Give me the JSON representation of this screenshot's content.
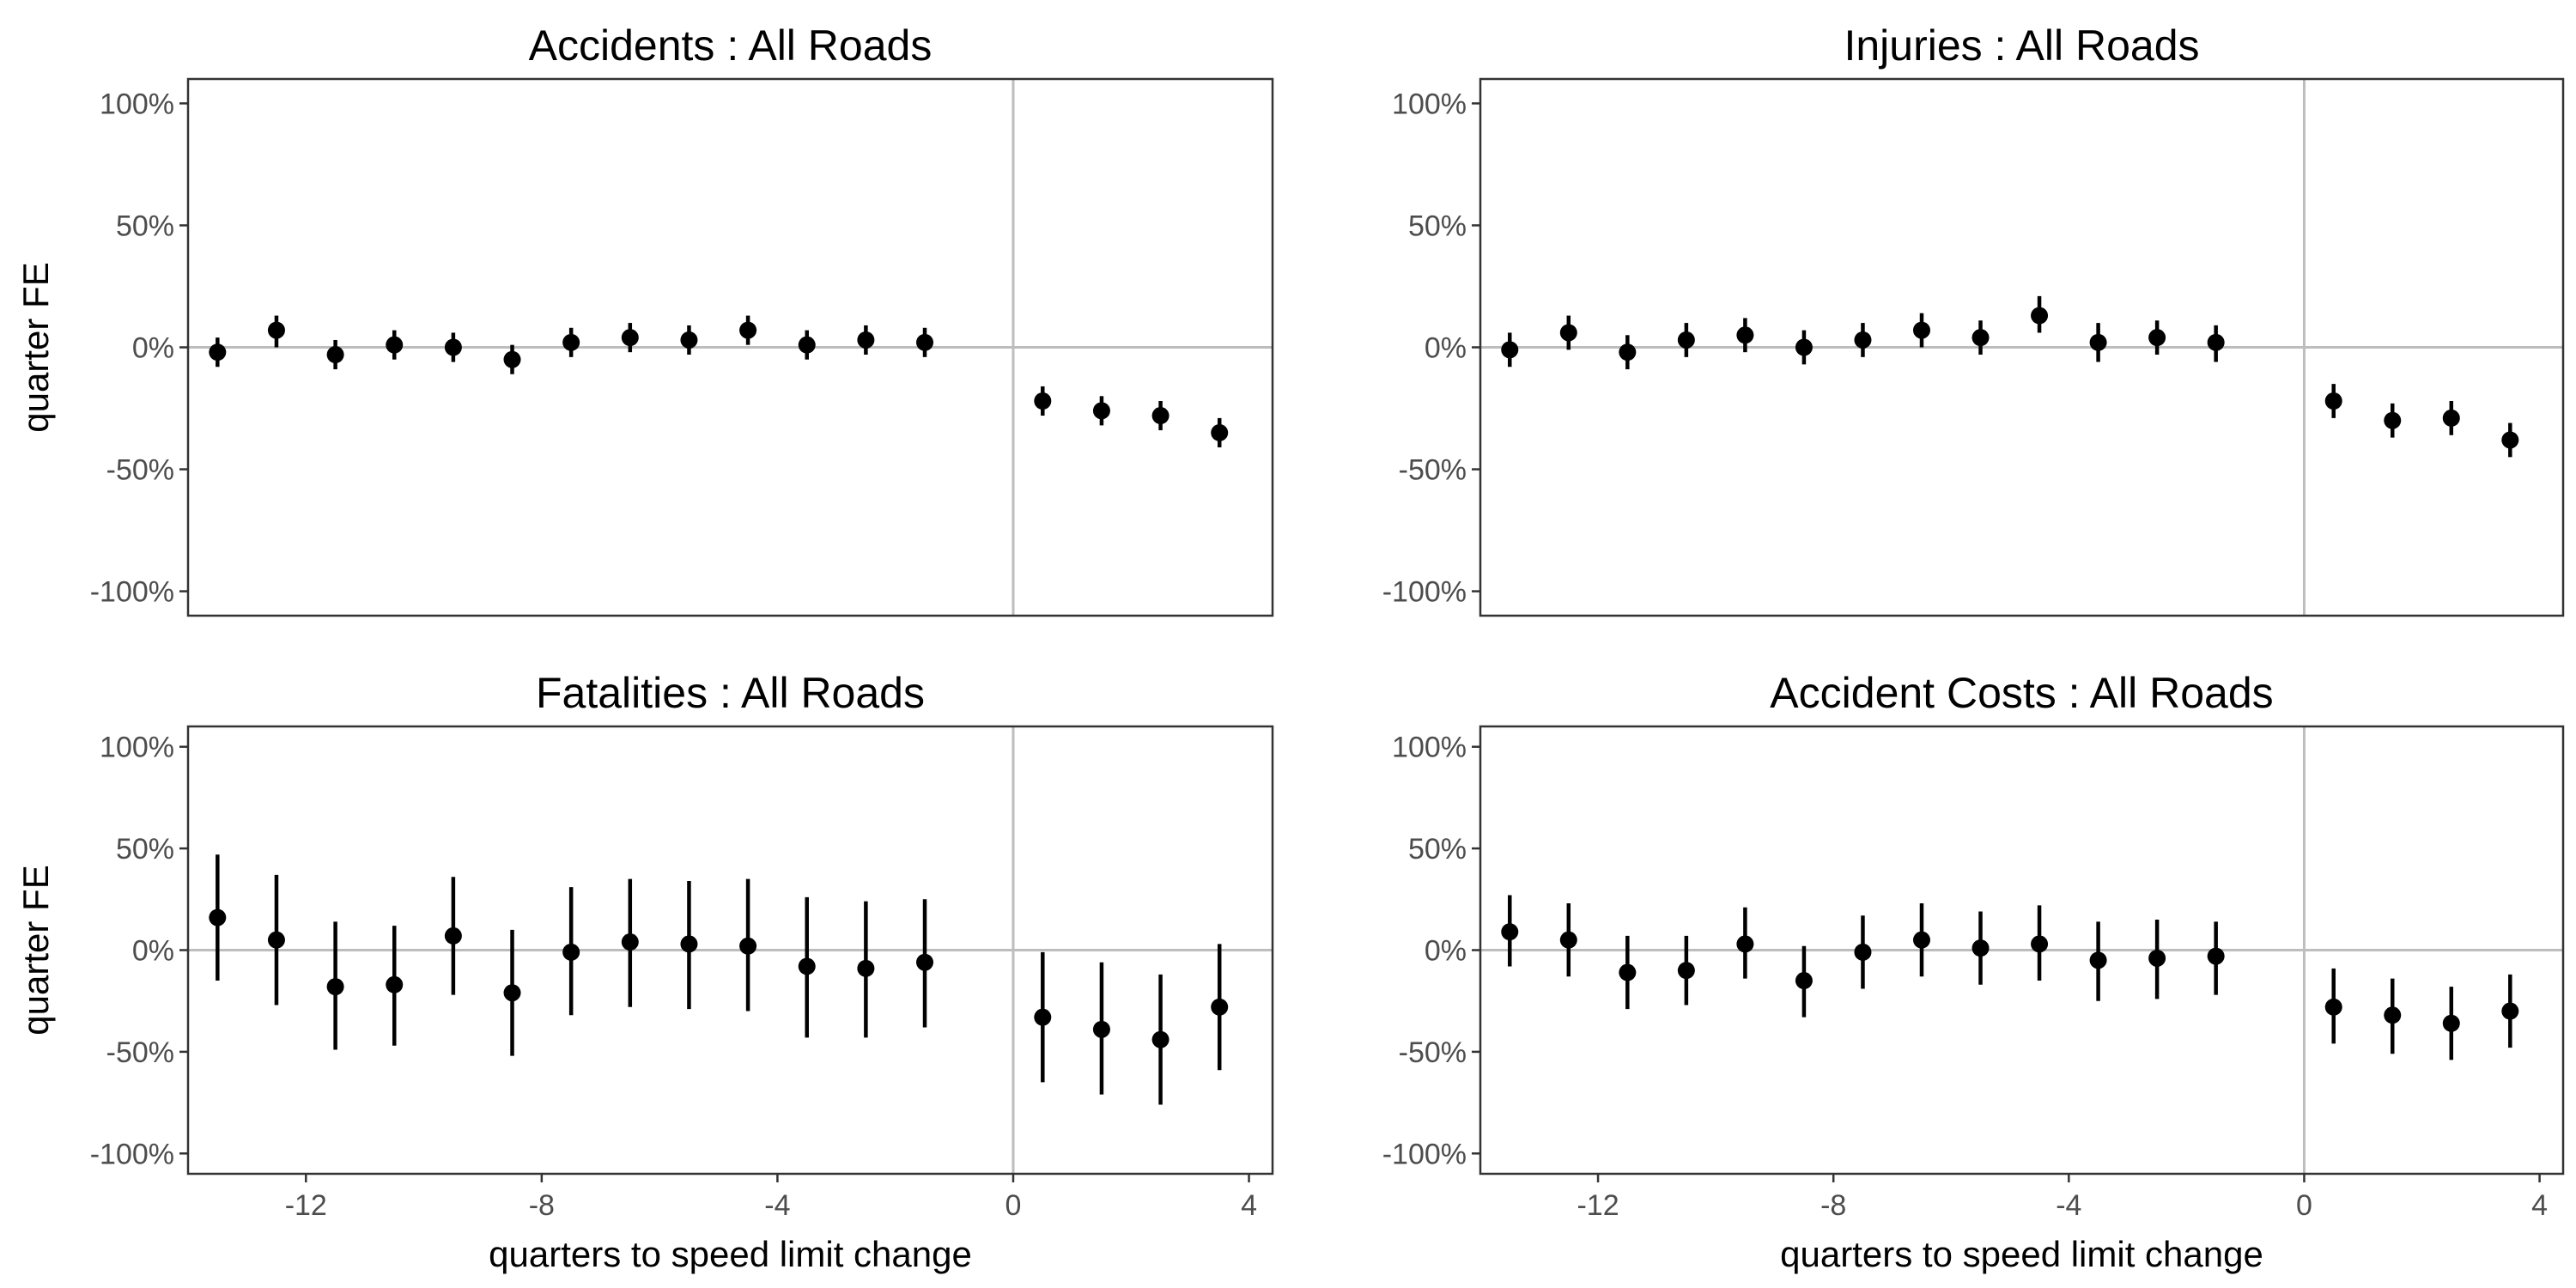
{
  "chart_data": [
    {
      "type": "scatter",
      "title": "Accidents : All Roads",
      "xlabel": "",
      "ylabel": "quarter FE",
      "xlim": [
        -14,
        4.4
      ],
      "ylim": [
        -110,
        110
      ],
      "x_ticks": [
        -12,
        -8,
        -4,
        0,
        4
      ],
      "y_ticks": [
        100,
        50,
        0,
        -50,
        -100
      ],
      "y_tick_labels": [
        "100%",
        "50%",
        "0%",
        "-50%",
        "-100%"
      ],
      "reference_lines": {
        "x": 0,
        "y": 0
      },
      "points": [
        {
          "x": -13.5,
          "y": -2,
          "lo": -8,
          "hi": 4
        },
        {
          "x": -12.5,
          "y": 7,
          "lo": 0,
          "hi": 13
        },
        {
          "x": -11.5,
          "y": -3,
          "lo": -9,
          "hi": 3
        },
        {
          "x": -10.5,
          "y": 1,
          "lo": -5,
          "hi": 7
        },
        {
          "x": -9.5,
          "y": 0,
          "lo": -6,
          "hi": 6
        },
        {
          "x": -8.5,
          "y": -5,
          "lo": -11,
          "hi": 1
        },
        {
          "x": -7.5,
          "y": 2,
          "lo": -4,
          "hi": 8
        },
        {
          "x": -6.5,
          "y": 4,
          "lo": -2,
          "hi": 10
        },
        {
          "x": -5.5,
          "y": 3,
          "lo": -3,
          "hi": 9
        },
        {
          "x": -4.5,
          "y": 7,
          "lo": 1,
          "hi": 13
        },
        {
          "x": -3.5,
          "y": 1,
          "lo": -5,
          "hi": 7
        },
        {
          "x": -2.5,
          "y": 3,
          "lo": -3,
          "hi": 9
        },
        {
          "x": -1.5,
          "y": 2,
          "lo": -4,
          "hi": 8
        },
        {
          "x": 0.5,
          "y": -22,
          "lo": -28,
          "hi": -16
        },
        {
          "x": 1.5,
          "y": -26,
          "lo": -32,
          "hi": -20
        },
        {
          "x": 2.5,
          "y": -28,
          "lo": -34,
          "hi": -22
        },
        {
          "x": 3.5,
          "y": -35,
          "lo": -41,
          "hi": -29
        }
      ]
    },
    {
      "type": "scatter",
      "title": "Injuries : All Roads",
      "xlabel": "",
      "ylabel": "",
      "xlim": [
        -14,
        4.4
      ],
      "ylim": [
        -110,
        110
      ],
      "x_ticks": [
        -12,
        -8,
        -4,
        0,
        4
      ],
      "y_ticks": [
        100,
        50,
        0,
        -50,
        -100
      ],
      "y_tick_labels": [
        "100%",
        "50%",
        "0%",
        "-50%",
        "-100%"
      ],
      "reference_lines": {
        "x": 0,
        "y": 0
      },
      "points": [
        {
          "x": -13.5,
          "y": -1,
          "lo": -8,
          "hi": 6
        },
        {
          "x": -12.5,
          "y": 6,
          "lo": -1,
          "hi": 13
        },
        {
          "x": -11.5,
          "y": -2,
          "lo": -9,
          "hi": 5
        },
        {
          "x": -10.5,
          "y": 3,
          "lo": -4,
          "hi": 10
        },
        {
          "x": -9.5,
          "y": 5,
          "lo": -2,
          "hi": 12
        },
        {
          "x": -8.5,
          "y": 0,
          "lo": -7,
          "hi": 7
        },
        {
          "x": -7.5,
          "y": 3,
          "lo": -4,
          "hi": 10
        },
        {
          "x": -6.5,
          "y": 7,
          "lo": 0,
          "hi": 14
        },
        {
          "x": -5.5,
          "y": 4,
          "lo": -3,
          "hi": 11
        },
        {
          "x": -4.5,
          "y": 13,
          "lo": 6,
          "hi": 21
        },
        {
          "x": -3.5,
          "y": 2,
          "lo": -6,
          "hi": 10
        },
        {
          "x": -2.5,
          "y": 4,
          "lo": -3,
          "hi": 11
        },
        {
          "x": -1.5,
          "y": 2,
          "lo": -6,
          "hi": 9
        },
        {
          "x": 0.5,
          "y": -22,
          "lo": -29,
          "hi": -15
        },
        {
          "x": 1.5,
          "y": -30,
          "lo": -37,
          "hi": -23
        },
        {
          "x": 2.5,
          "y": -29,
          "lo": -36,
          "hi": -22
        },
        {
          "x": 3.5,
          "y": -38,
          "lo": -45,
          "hi": -31
        }
      ]
    },
    {
      "type": "scatter",
      "title": "Fatalities : All Roads",
      "xlabel": "quarters to speed limit change",
      "ylabel": "quarter FE",
      "xlim": [
        -14,
        4.4
      ],
      "ylim": [
        -110,
        110
      ],
      "x_ticks": [
        -12,
        -8,
        -4,
        0,
        4
      ],
      "y_ticks": [
        100,
        50,
        0,
        -50,
        -100
      ],
      "y_tick_labels": [
        "100%",
        "50%",
        "0%",
        "-50%",
        "-100%"
      ],
      "reference_lines": {
        "x": 0,
        "y": 0
      },
      "points": [
        {
          "x": -13.5,
          "y": 16,
          "lo": -15,
          "hi": 47
        },
        {
          "x": -12.5,
          "y": 5,
          "lo": -27,
          "hi": 37
        },
        {
          "x": -11.5,
          "y": -18,
          "lo": -49,
          "hi": 14
        },
        {
          "x": -10.5,
          "y": -17,
          "lo": -47,
          "hi": 12
        },
        {
          "x": -9.5,
          "y": 7,
          "lo": -22,
          "hi": 36
        },
        {
          "x": -8.5,
          "y": -21,
          "lo": -52,
          "hi": 10
        },
        {
          "x": -7.5,
          "y": -1,
          "lo": -32,
          "hi": 31
        },
        {
          "x": -6.5,
          "y": 4,
          "lo": -28,
          "hi": 35
        },
        {
          "x": -5.5,
          "y": 3,
          "lo": -29,
          "hi": 34
        },
        {
          "x": -4.5,
          "y": 2,
          "lo": -30,
          "hi": 35
        },
        {
          "x": -3.5,
          "y": -8,
          "lo": -43,
          "hi": 26
        },
        {
          "x": -2.5,
          "y": -9,
          "lo": -43,
          "hi": 24
        },
        {
          "x": -1.5,
          "y": -6,
          "lo": -38,
          "hi": 25
        },
        {
          "x": 0.5,
          "y": -33,
          "lo": -65,
          "hi": -1
        },
        {
          "x": 1.5,
          "y": -39,
          "lo": -71,
          "hi": -6
        },
        {
          "x": 2.5,
          "y": -44,
          "lo": -76,
          "hi": -12
        },
        {
          "x": 3.5,
          "y": -28,
          "lo": -59,
          "hi": 3
        }
      ]
    },
    {
      "type": "scatter",
      "title": "Accident Costs : All Roads",
      "xlabel": "quarters to speed limit change",
      "ylabel": "",
      "xlim": [
        -14,
        4.4
      ],
      "ylim": [
        -110,
        110
      ],
      "x_ticks": [
        -12,
        -8,
        -4,
        0,
        4
      ],
      "y_ticks": [
        100,
        50,
        0,
        -50,
        -100
      ],
      "y_tick_labels": [
        "100%",
        "50%",
        "0%",
        "-50%",
        "-100%"
      ],
      "reference_lines": {
        "x": 0,
        "y": 0
      },
      "points": [
        {
          "x": -13.5,
          "y": 9,
          "lo": -8,
          "hi": 27
        },
        {
          "x": -12.5,
          "y": 5,
          "lo": -13,
          "hi": 23
        },
        {
          "x": -11.5,
          "y": -11,
          "lo": -29,
          "hi": 7
        },
        {
          "x": -10.5,
          "y": -10,
          "lo": -27,
          "hi": 7
        },
        {
          "x": -9.5,
          "y": 3,
          "lo": -14,
          "hi": 21
        },
        {
          "x": -8.5,
          "y": -15,
          "lo": -33,
          "hi": 2
        },
        {
          "x": -7.5,
          "y": -1,
          "lo": -19,
          "hi": 17
        },
        {
          "x": -6.5,
          "y": 5,
          "lo": -13,
          "hi": 23
        },
        {
          "x": -5.5,
          "y": 1,
          "lo": -17,
          "hi": 19
        },
        {
          "x": -4.5,
          "y": 3,
          "lo": -15,
          "hi": 22
        },
        {
          "x": -3.5,
          "y": -5,
          "lo": -25,
          "hi": 14
        },
        {
          "x": -2.5,
          "y": -4,
          "lo": -24,
          "hi": 15
        },
        {
          "x": -1.5,
          "y": -3,
          "lo": -22,
          "hi": 14
        },
        {
          "x": 0.5,
          "y": -28,
          "lo": -46,
          "hi": -9
        },
        {
          "x": 1.5,
          "y": -32,
          "lo": -51,
          "hi": -14
        },
        {
          "x": 2.5,
          "y": -36,
          "lo": -54,
          "hi": -18
        },
        {
          "x": 3.5,
          "y": -30,
          "lo": -48,
          "hi": -12
        }
      ]
    }
  ]
}
